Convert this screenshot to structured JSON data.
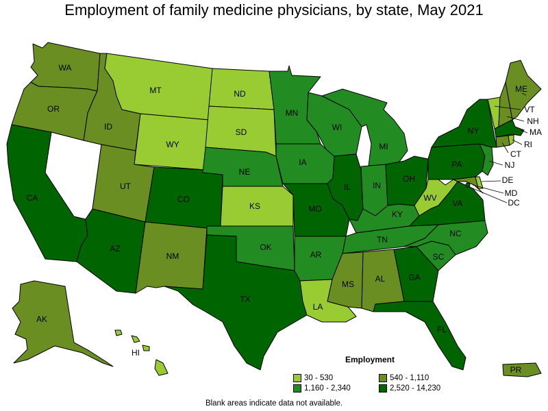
{
  "title": "Employment of family medicine physicians, by state, May 2021",
  "legend": {
    "title": "Employment",
    "items": [
      {
        "label": "30 - 530",
        "color": "#99cc33"
      },
      {
        "label": "540 - 1,110",
        "color": "#6b8e23"
      },
      {
        "label": "1,160 - 2,340",
        "color": "#228b22"
      },
      {
        "label": "2,520 - 14,230",
        "color": "#006400"
      }
    ]
  },
  "footnote": "Blank areas indicate data not available.",
  "states": {
    "WA": {
      "label": "WA",
      "bin": 1
    },
    "OR": {
      "label": "OR",
      "bin": 1
    },
    "CA": {
      "label": "CA",
      "bin": 3
    },
    "NV": {
      "label": "",
      "bin": null
    },
    "ID": {
      "label": "ID",
      "bin": 1
    },
    "MT": {
      "label": "MT",
      "bin": 0
    },
    "WY": {
      "label": "WY",
      "bin": 0
    },
    "UT": {
      "label": "UT",
      "bin": 1
    },
    "AZ": {
      "label": "AZ",
      "bin": 3
    },
    "CO": {
      "label": "CO",
      "bin": 3
    },
    "NM": {
      "label": "NM",
      "bin": 1
    },
    "ND": {
      "label": "ND",
      "bin": 0
    },
    "SD": {
      "label": "SD",
      "bin": 0
    },
    "NE": {
      "label": "NE",
      "bin": 2
    },
    "KS": {
      "label": "KS",
      "bin": 0
    },
    "OK": {
      "label": "OK",
      "bin": 2
    },
    "TX": {
      "label": "TX",
      "bin": 3
    },
    "MN": {
      "label": "MN",
      "bin": 2
    },
    "IA": {
      "label": "IA",
      "bin": 2
    },
    "MO": {
      "label": "MO",
      "bin": 3
    },
    "AR": {
      "label": "AR",
      "bin": 2
    },
    "LA": {
      "label": "LA",
      "bin": 0
    },
    "WI": {
      "label": "WI",
      "bin": 2
    },
    "IL": {
      "label": "IL",
      "bin": 3
    },
    "MI": {
      "label": "MI",
      "bin": 2
    },
    "IN": {
      "label": "IN",
      "bin": 2
    },
    "OH": {
      "label": "OH",
      "bin": 3
    },
    "KY": {
      "label": "KY",
      "bin": 2
    },
    "TN": {
      "label": "TN",
      "bin": 2
    },
    "MS": {
      "label": "MS",
      "bin": 1
    },
    "AL": {
      "label": "AL",
      "bin": 1
    },
    "GA": {
      "label": "GA",
      "bin": 3
    },
    "FL": {
      "label": "FL",
      "bin": 3
    },
    "SC": {
      "label": "SC",
      "bin": 2
    },
    "NC": {
      "label": "NC",
      "bin": 2
    },
    "VA": {
      "label": "VA",
      "bin": 3
    },
    "WV": {
      "label": "WV",
      "bin": 0
    },
    "PA": {
      "label": "PA",
      "bin": 3
    },
    "NY": {
      "label": "NY",
      "bin": 3
    },
    "ME": {
      "label": "ME",
      "bin": 1
    },
    "VT": {
      "label": "VT",
      "bin": 0
    },
    "NH": {
      "label": "NH",
      "bin": 1
    },
    "MA": {
      "label": "MA",
      "bin": 3
    },
    "RI": {
      "label": "RI",
      "bin": 0
    },
    "CT": {
      "label": "CT",
      "bin": 1
    },
    "NJ": {
      "label": "NJ",
      "bin": 2
    },
    "DE": {
      "label": "DE",
      "bin": 0
    },
    "MD": {
      "label": "MD",
      "bin": 1
    },
    "DC": {
      "label": "DC",
      "bin": 3
    },
    "AK": {
      "label": "AK",
      "bin": 1
    },
    "HI": {
      "label": "HI",
      "bin": 0
    },
    "PR": {
      "label": "PR",
      "bin": 1
    }
  }
}
